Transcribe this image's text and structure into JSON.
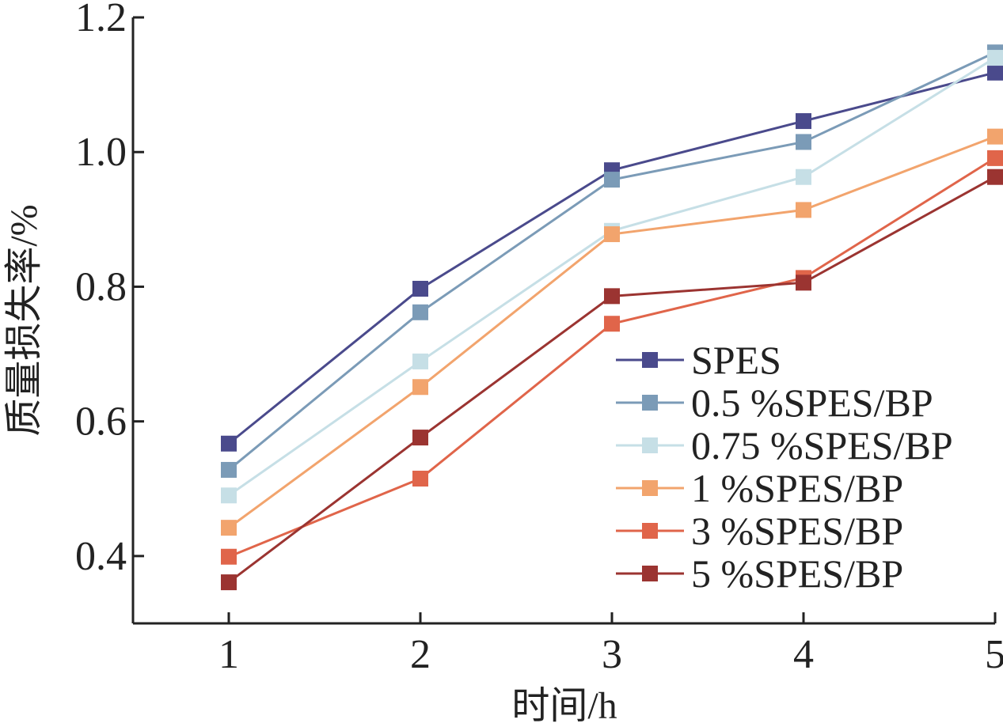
{
  "chart_data": {
    "type": "line",
    "title": "",
    "xlabel": "时间/h",
    "ylabel": "质量损失率/%",
    "x": [
      1,
      2,
      3,
      4,
      5
    ],
    "xticks": [
      "1",
      "2",
      "3",
      "4",
      "5"
    ],
    "yticks": [
      "0.4",
      "0.6",
      "0.8",
      "1.0",
      "1.2"
    ],
    "xlim": [
      0.5,
      5
    ],
    "ylim": [
      0.3,
      1.2
    ],
    "grid": false,
    "legend_position": "center-right",
    "marker": "square",
    "series": [
      {
        "name": "SPES",
        "color": "#4a4a8c",
        "values": [
          0.567,
          0.797,
          0.973,
          1.046,
          1.118
        ]
      },
      {
        "name": "0.5 %SPES/BP",
        "color": "#7b9bb7",
        "values": [
          0.528,
          0.762,
          0.959,
          1.015,
          1.148
        ]
      },
      {
        "name": "0.75 %SPES/BP",
        "color": "#c6dfe6",
        "values": [
          0.49,
          0.689,
          0.883,
          0.963,
          1.14
        ]
      },
      {
        "name": "1 %SPES/BP",
        "color": "#f2a46d",
        "values": [
          0.442,
          0.651,
          0.878,
          0.914,
          1.023
        ]
      },
      {
        "name": "3 %SPES/BP",
        "color": "#e0654a",
        "values": [
          0.399,
          0.515,
          0.745,
          0.813,
          0.991
        ]
      },
      {
        "name": "5 %SPES/BP",
        "color": "#9b3431",
        "values": [
          0.361,
          0.576,
          0.786,
          0.806,
          0.963
        ]
      }
    ]
  }
}
